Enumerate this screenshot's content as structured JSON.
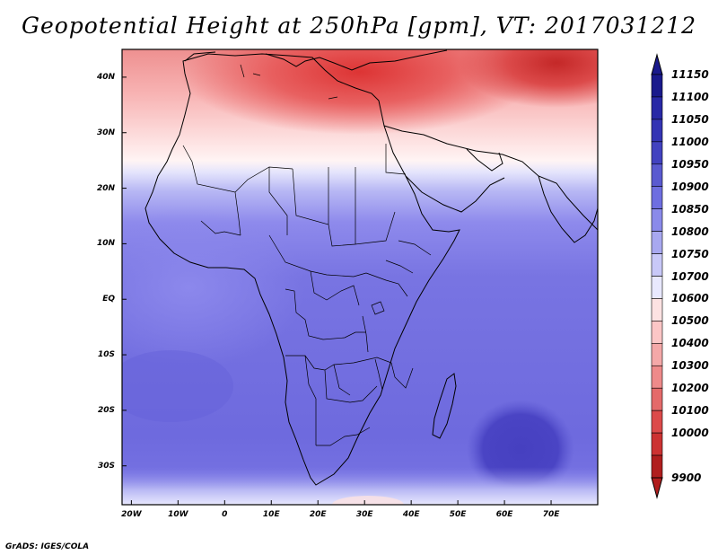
{
  "title": "Geopotential Height at 250hPa [gpm], VT: 2017031212",
  "footer": "GrADS: IGES/COLA",
  "map": {
    "lat_labels": [
      "40N",
      "30N",
      "20N",
      "10N",
      "EQ",
      "10S",
      "20S",
      "30S"
    ],
    "lat_values": [
      40,
      30,
      20,
      10,
      0,
      -10,
      -20,
      -30
    ],
    "lon_labels": [
      "20W",
      "10W",
      "0",
      "10E",
      "20E",
      "30E",
      "40E",
      "50E",
      "60E",
      "70E"
    ],
    "lon_values": [
      -20,
      -10,
      0,
      10,
      20,
      30,
      40,
      50,
      60,
      70
    ],
    "lon_range": [
      -22,
      80
    ],
    "lat_range": [
      -37,
      45
    ],
    "field": "Geopotential Height at 250hPa",
    "units": "gpm",
    "valid_time": "2017031212"
  },
  "colorbar": {
    "levels": [
      "11150",
      "11100",
      "11050",
      "11000",
      "10950",
      "10900",
      "10850",
      "10800",
      "10750",
      "10700",
      "10600",
      "10500",
      "10400",
      "10300",
      "10200",
      "10100",
      "10000",
      "9900"
    ],
    "colors": [
      "#1a1a8c",
      "#2828a6",
      "#3434b4",
      "#4242c0",
      "#5a5ad0",
      "#6e6ee0",
      "#8a8aea",
      "#a8a8f0",
      "#c8c8f8",
      "#e8e8fe",
      "#fde2e2",
      "#fbc6c6",
      "#f4a8a8",
      "#ee8a8a",
      "#e46a6a",
      "#dc4a4a",
      "#cc3232",
      "#b01e1e"
    ]
  },
  "colors": {
    "ocean_south": "#6a66dc",
    "tropical": "#7a76e4",
    "anticyclone": "#4a44c4",
    "north_warm": "#fbc6c6",
    "north_hot": "#e45a5a"
  }
}
